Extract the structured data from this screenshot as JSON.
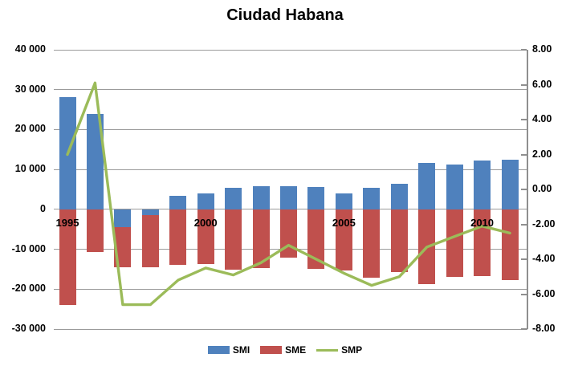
{
  "title": "Ciudad Habana",
  "colors": {
    "smi": "#4F81BD",
    "sme": "#C0504D",
    "smp": "#9BBB59",
    "gridline": "#9B9B9B",
    "right_axis_line": "#8F8F8F",
    "text": "#000000",
    "background": "#FFFFFF"
  },
  "legend": [
    {
      "label": "SMI",
      "swatch": "bar",
      "color": "#4F81BD"
    },
    {
      "label": "SME",
      "swatch": "bar",
      "color": "#C0504D"
    },
    {
      "label": "SMP",
      "swatch": "line",
      "color": "#9BBB59"
    }
  ],
  "chart_data": {
    "type": "combo",
    "title": "Ciudad Habana",
    "categories": [
      1995,
      1996,
      1997,
      1998,
      1999,
      2000,
      2001,
      2002,
      2003,
      2004,
      2005,
      2006,
      2007,
      2008,
      2009,
      2010,
      2011
    ],
    "x_axis_visible_labels": [
      {
        "label": "1995",
        "index": 0
      },
      {
        "label": "2000",
        "index": 5
      },
      {
        "label": "2005",
        "index": 10
      },
      {
        "label": "2010",
        "index": 15
      }
    ],
    "left_axis": {
      "min": -30000,
      "max": 40000,
      "step": 10000,
      "tick_labels": [
        "40 000",
        "30 000",
        "20 000",
        "10 000",
        "0",
        "-10 000",
        "-20 000",
        "-30 000"
      ]
    },
    "right_axis": {
      "min": -8,
      "max": 8,
      "step": 2,
      "tick_labels": [
        "8.00",
        "6.00",
        "4.00",
        "2.00",
        "0.00",
        "-2.00",
        "-4.00",
        "-6.00",
        "-8.00"
      ]
    },
    "grid": true,
    "legend_position": "bottom",
    "series": [
      {
        "name": "SMI",
        "type": "bar",
        "axis": "left",
        "color": "#4F81BD",
        "stacked": true,
        "values": [
          28200,
          24000,
          -4400,
          -1400,
          3300,
          4000,
          5400,
          5800,
          5800,
          5700,
          4000,
          5400,
          6500,
          11600,
          11200,
          12300,
          12400
        ]
      },
      {
        "name": "SME",
        "type": "bar",
        "axis": "left",
        "color": "#C0504D",
        "stacked": true,
        "values": [
          -24000,
          -10600,
          -10100,
          -13100,
          -14000,
          -13700,
          -15100,
          -14700,
          -12200,
          -15000,
          -15300,
          -17100,
          -15800,
          -18700,
          -16900,
          -16700,
          -17800
        ]
      },
      {
        "name": "SMP",
        "type": "line",
        "axis": "right",
        "color": "#9BBB59",
        "values": [
          2.0,
          6.1,
          -6.6,
          -6.6,
          -5.2,
          -4.5,
          -4.9,
          -4.2,
          -3.2,
          -4.0,
          -4.8,
          -5.5,
          -5.0,
          -3.3,
          -2.7,
          -2.1,
          -2.5
        ]
      }
    ]
  }
}
